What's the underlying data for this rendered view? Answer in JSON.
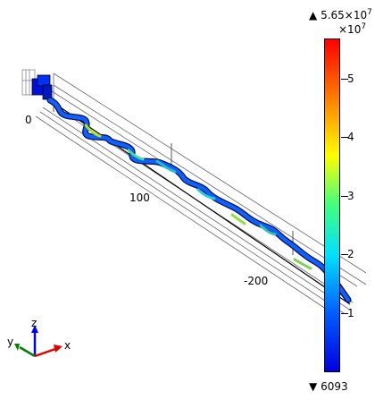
{
  "colorbar": {
    "max_label": "5.65×10",
    "max_exponent": "7",
    "multiplier_base": "×10",
    "multiplier_exponent": "7",
    "min_label": "6093",
    "up_triangle": "▲",
    "down_triangle": "▼",
    "ticks": [
      "5",
      "4",
      "3",
      "2",
      "1"
    ],
    "colors": [
      "#ff0000",
      "#ff8000",
      "#ffff00",
      "#00ff80",
      "#00ffff",
      "#0080ff",
      "#0000ff"
    ]
  },
  "axes": {
    "labels": {
      "zero": "0",
      "hundred": "100",
      "two_hundred": "-200"
    }
  },
  "triad": {
    "z": "z",
    "y": "y",
    "x": "x"
  }
}
